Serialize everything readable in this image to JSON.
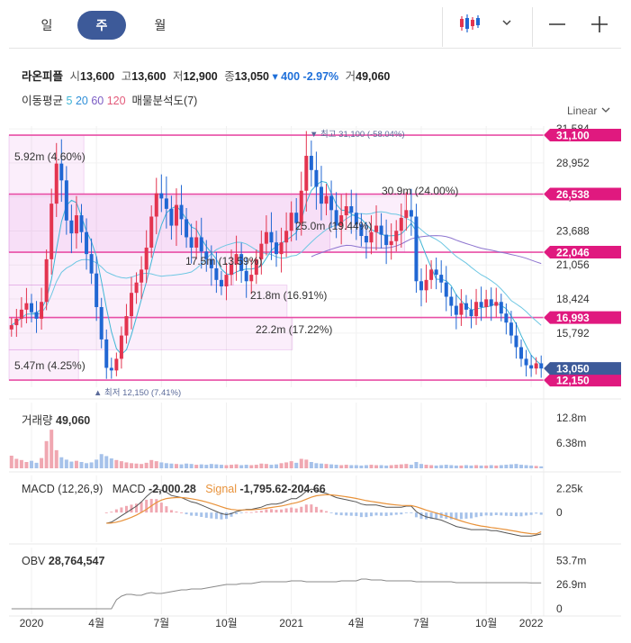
{
  "period_tabs": [
    {
      "label": "일",
      "active": false
    },
    {
      "label": "주",
      "active": true
    },
    {
      "label": "월",
      "active": false
    }
  ],
  "toolbar": {
    "chart_type_icon": "candlestick-icon",
    "dropdown_icon": "chevron-down-icon",
    "zoom_out_icon": "minus-icon",
    "zoom_in_icon": "plus-icon"
  },
  "quote": {
    "name": "라온피플",
    "open_label": "시",
    "open": "13,600",
    "high_label": "고",
    "high": "13,600",
    "low_label": "저",
    "low": "12,900",
    "close_label": "종",
    "close": "13,050",
    "change": "▾ 400",
    "change_pct": "-2.97%",
    "volume_label": "거",
    "volume": "49,060"
  },
  "ma_legend": {
    "label": "이동평균",
    "periods": [
      {
        "value": "5",
        "color": "#3fb6d6"
      },
      {
        "value": "20",
        "color": "#2f8fd8"
      },
      {
        "value": "60",
        "color": "#7b5cc4"
      },
      {
        "value": "120",
        "color": "#e35a7a"
      }
    ],
    "volume_profile": "매물분석도(7)"
  },
  "scale_mode": "Linear",
  "chart_data": [
    {
      "type": "candlestick",
      "y_ticks": [
        "31,584",
        "28,952",
        "26,320",
        "23,688",
        "21,056",
        "18,424",
        "15,792"
      ],
      "y_tick_values": [
        31584,
        28952,
        26320,
        23688,
        21056,
        18424,
        15792
      ],
      "ylim": [
        11600,
        31800
      ],
      "x_ticks": [
        "2020",
        "4월",
        "7월",
        "10월",
        "2021",
        "4월",
        "7월",
        "10월",
        "2022"
      ],
      "price_levels": [
        {
          "value": 31100,
          "label": "31,100"
        },
        {
          "value": 26538,
          "label": "26,538"
        },
        {
          "value": 22046,
          "label": "22,046"
        },
        {
          "value": 16993,
          "label": "16,993"
        },
        {
          "value": 12150,
          "label": "12,150"
        }
      ],
      "current_price": {
        "value": 13050,
        "label": "13,050"
      },
      "high_marker": {
        "label": "▼ 최고",
        "value": "31,100 (-58.04%)"
      },
      "low_marker": {
        "label": "▲ 최저",
        "value": "12,150 (7.41%)"
      },
      "volume_profile": [
        {
          "label": "5.92m (4.60%)",
          "from": 26538,
          "to": 31100,
          "fraction": 0.14
        },
        {
          "label": "30.9m (24.00%)",
          "from": 22046,
          "to": 26538,
          "fraction": 0.74
        },
        {
          "label": "25.0m (19.44%)",
          "from": 22046,
          "to": 26538,
          "fraction": 0.6
        },
        {
          "label": "17.5m (13.59%)",
          "from": 19500,
          "to": 22046,
          "fraction": 0.42
        },
        {
          "label": "21.8m (16.91%)",
          "from": 16993,
          "to": 19500,
          "fraction": 0.52
        },
        {
          "label": "22.2m (17.22%)",
          "from": 14500,
          "to": 16993,
          "fraction": 0.53
        },
        {
          "label": "5.47m (4.25%)",
          "from": 12150,
          "to": 14500,
          "fraction": 0.13
        }
      ],
      "close_path": [
        16400,
        16900,
        17600,
        18100,
        17400,
        16900,
        18200,
        21500,
        25800,
        28900,
        27600,
        24500,
        23500,
        24900,
        23600,
        21900,
        20400,
        17800,
        15300,
        13100,
        12900,
        13800,
        15600,
        17100,
        18900,
        19700,
        20700,
        22400,
        24800,
        26600,
        26200,
        25400,
        24100,
        25700,
        24600,
        23200,
        22400,
        23200,
        22100,
        21500,
        20800,
        19900,
        19400,
        20300,
        21100,
        21900,
        20600,
        19800,
        20300,
        21500,
        22700,
        23600,
        22800,
        21900,
        22800,
        23700,
        25100,
        24300,
        26800,
        29500,
        28400,
        27100,
        25800,
        26400,
        25300,
        24100,
        24900,
        25600,
        25100,
        24200,
        23300,
        22800,
        23600,
        24100,
        23400,
        22600,
        22900,
        23700,
        24700,
        25300,
        24800,
        19800,
        19100,
        19900,
        20700,
        20300,
        19700,
        18600,
        17900,
        17200,
        18100,
        17600,
        17100,
        18200,
        17800,
        18400,
        17900,
        18200,
        17300,
        16600,
        15600,
        14700,
        13800,
        13300,
        13050,
        13450,
        13050
      ]
    },
    {
      "type": "bar",
      "title": "거래량",
      "value": "49,060",
      "y_ticks": [
        "12.8m",
        "6.38m"
      ],
      "y_tick_values": [
        12.8,
        6.38
      ],
      "ylim": [
        0,
        16
      ],
      "values": [
        3.2,
        2.4,
        2.1,
        1.6,
        1.9,
        1.4,
        2.6,
        6.9,
        9.8,
        4.6,
        2.8,
        2.2,
        1.7,
        1.9,
        1.6,
        1.3,
        1.5,
        2.2,
        3.6,
        3.1,
        2.5,
        2.1,
        1.8,
        1.5,
        1.3,
        1.2,
        1.1,
        1.4,
        2.1,
        1.8,
        1.5,
        1.3,
        1.2,
        1.1,
        1.0,
        1.2,
        1.1,
        0.9,
        1.0,
        0.9,
        1.1,
        1.0,
        0.9,
        0.8,
        0.9,
        1.0,
        0.8,
        0.9,
        0.8,
        0.9,
        1.2,
        1.1,
        0.9,
        1.0,
        1.3,
        1.5,
        1.8,
        1.4,
        2.4,
        2.2,
        1.6,
        1.3,
        1.2,
        1.1,
        1.0,
        0.9,
        0.8,
        0.9,
        0.8,
        0.8,
        0.7,
        0.8,
        0.9,
        0.8,
        0.8,
        0.7,
        0.8,
        0.9,
        1.0,
        1.1,
        0.9,
        1.6,
        1.1,
        0.9,
        0.8,
        0.7,
        0.8,
        0.9,
        0.8,
        0.7,
        0.7,
        0.8,
        0.7,
        0.8,
        0.7,
        0.7,
        0.8,
        0.7,
        0.8,
        0.9,
        1.0,
        1.1,
        0.9,
        0.8,
        0.7,
        0.6,
        0.5
      ]
    },
    {
      "type": "line",
      "title": "MACD (12,26,9)",
      "legend": [
        {
          "name": "MACD",
          "value": "-2,000.28",
          "color": "#444444"
        },
        {
          "name": "Signal",
          "value": "-1,795.62",
          "color": "#e8923a"
        },
        {
          "name": "",
          "value": "-204.66",
          "color": "#444444"
        }
      ],
      "y_ticks": [
        "2.25k",
        "0"
      ],
      "y_tick_values": [
        2250,
        0
      ],
      "ylim": [
        -2600,
        3300
      ],
      "macd": [
        0,
        0,
        0,
        0,
        0,
        0,
        0,
        0,
        0,
        0,
        0,
        0,
        0,
        0,
        0,
        0,
        0,
        0,
        0,
        -1000,
        -900,
        -600,
        -300,
        0,
        300,
        600,
        1000,
        1500,
        1900,
        2200,
        2100,
        1900,
        1600,
        1500,
        1400,
        1200,
        1000,
        900,
        700,
        500,
        300,
        100,
        -100,
        -200,
        -100,
        100,
        200,
        300,
        300,
        400,
        500,
        700,
        800,
        800,
        900,
        1100,
        1300,
        1300,
        1600,
        2000,
        2200,
        2100,
        1900,
        1800,
        1600,
        1400,
        1300,
        1200,
        1100,
        1000,
        800,
        700,
        700,
        700,
        600,
        500,
        500,
        500,
        500,
        600,
        600,
        100,
        -200,
        -400,
        -500,
        -600,
        -700,
        -900,
        -1100,
        -1300,
        -1400,
        -1500,
        -1600,
        -1600,
        -1600,
        -1600,
        -1700,
        -1700,
        -1800,
        -1900,
        -2000,
        -2100,
        -2200,
        -2200,
        -2200,
        -2100,
        -2000
      ],
      "signal": [
        0,
        0,
        0,
        0,
        0,
        0,
        0,
        0,
        0,
        0,
        0,
        0,
        0,
        0,
        0,
        0,
        0,
        0,
        0,
        -1000,
        -980,
        -900,
        -780,
        -620,
        -440,
        -230,
        10,
        300,
        620,
        940,
        1170,
        1310,
        1370,
        1400,
        1400,
        1360,
        1290,
        1210,
        1110,
        990,
        850,
        700,
        540,
        390,
        290,
        250,
        240,
        250,
        260,
        290,
        330,
        400,
        480,
        540,
        610,
        710,
        830,
        920,
        1060,
        1250,
        1440,
        1570,
        1630,
        1670,
        1660,
        1610,
        1550,
        1480,
        1400,
        1320,
        1220,
        1120,
        1040,
        970,
        900,
        820,
        760,
        710,
        670,
        660,
        650,
        540,
        390,
        230,
        90,
        -50,
        -180,
        -320,
        -470,
        -640,
        -790,
        -930,
        -1060,
        -1170,
        -1260,
        -1330,
        -1400,
        -1460,
        -1530,
        -1600,
        -1680,
        -1760,
        -1850,
        -1920,
        -1980,
        -2000,
        -1795
      ]
    },
    {
      "type": "line",
      "title": "OBV",
      "value": "28,764,547",
      "y_ticks": [
        "53.7m",
        "26.9m",
        "0"
      ],
      "y_tick_values": [
        53.7,
        26.9,
        0
      ],
      "ylim": [
        0,
        60
      ],
      "values": [
        0,
        0,
        0,
        0,
        0,
        0,
        0,
        0,
        0,
        0,
        0,
        0,
        0,
        0,
        0,
        0,
        0,
        0,
        0,
        0,
        0,
        10,
        14,
        16,
        16,
        15,
        15,
        17,
        18,
        17,
        17,
        18,
        19,
        20,
        21,
        21,
        22,
        22,
        22,
        23,
        24,
        25,
        26,
        27,
        27,
        27,
        28,
        28,
        28,
        29,
        30,
        30,
        30,
        30,
        30,
        30,
        31,
        31,
        31,
        30,
        30,
        30,
        30,
        30,
        30,
        30,
        31,
        31,
        31,
        31,
        33,
        33,
        32,
        32,
        32,
        31,
        31,
        31,
        31,
        31,
        31,
        30,
        30,
        30,
        30,
        30,
        30,
        30,
        30,
        29,
        29,
        29,
        29,
        29,
        29,
        29,
        29,
        29,
        29,
        29,
        29,
        29,
        29,
        29,
        28.8,
        28.8,
        28.8
      ]
    }
  ]
}
